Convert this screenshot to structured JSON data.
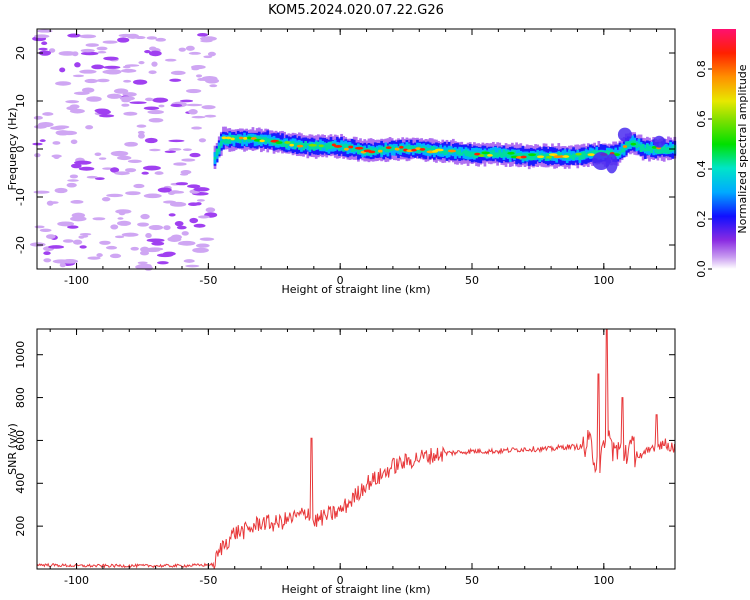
{
  "title": "KOM5.2024.020.07.22.G26",
  "chart_data": [
    {
      "type": "heatmap",
      "xlabel": "Height of straight line (km)",
      "ylabel": "Frequency (Hz)",
      "xlim": [
        -115,
        127
      ],
      "ylim": [
        -25,
        25
      ],
      "xticks": [
        -100,
        -50,
        0,
        50,
        100
      ],
      "yticks": [
        -20,
        -10,
        0,
        10,
        20
      ],
      "colorbar": {
        "label": "Normalized spectral amplitude",
        "range": [
          0,
          0.96
        ],
        "ticks": [
          0.0,
          0.2,
          0.4,
          0.6,
          0.8
        ]
      },
      "noise_region_x": [
        -115,
        -48
      ],
      "signal_track": {
        "x": [
          -48,
          -45,
          -30,
          -20,
          -10,
          0,
          10,
          20,
          30,
          40,
          50,
          60,
          70,
          80,
          90,
          95,
          100,
          105,
          110,
          115,
          120,
          127
        ],
        "y": [
          -2,
          2,
          2,
          1,
          0.5,
          0.5,
          -0.5,
          0,
          0,
          -0.5,
          -1,
          -1,
          -1.5,
          -1.5,
          -1.5,
          -1,
          -1,
          -1,
          1.5,
          0,
          0,
          0
        ]
      },
      "grid": false
    },
    {
      "type": "line",
      "xlabel": "Height of straight line (km)",
      "ylabel": "SNR (v/v)",
      "xlim": [
        -115,
        127
      ],
      "ylim": [
        0,
        1120
      ],
      "xticks": [
        -100,
        -50,
        0,
        50,
        100
      ],
      "yticks": [
        200,
        400,
        600,
        800,
        1000
      ],
      "color": "#e8383a",
      "series": [
        {
          "x": [
            -115,
            -100,
            -80,
            -60,
            -48,
            -45,
            -40,
            -35,
            -30,
            -25,
            -20,
            -15,
            -12,
            -10,
            -5,
            0,
            5,
            10,
            15,
            20,
            25,
            30,
            35,
            40,
            50,
            60,
            70,
            75,
            80,
            85,
            90,
            95,
            98,
            100,
            102,
            105,
            110,
            115,
            120,
            127
          ],
          "y": [
            20,
            15,
            15,
            15,
            20,
            100,
            170,
            180,
            220,
            210,
            230,
            250,
            270,
            220,
            250,
            270,
            330,
            400,
            430,
            480,
            500,
            520,
            530,
            540,
            550,
            550,
            560,
            560,
            560,
            570,
            570,
            570,
            500,
            530,
            600,
            540,
            560,
            520,
            590,
            570
          ]
        }
      ],
      "spikes": [
        {
          "x": -11,
          "y": 610
        },
        {
          "x": 98,
          "y": 910
        },
        {
          "x": 101,
          "y": 1120
        },
        {
          "x": 107,
          "y": 800
        },
        {
          "x": 120,
          "y": 720
        }
      ],
      "grid": false
    }
  ]
}
